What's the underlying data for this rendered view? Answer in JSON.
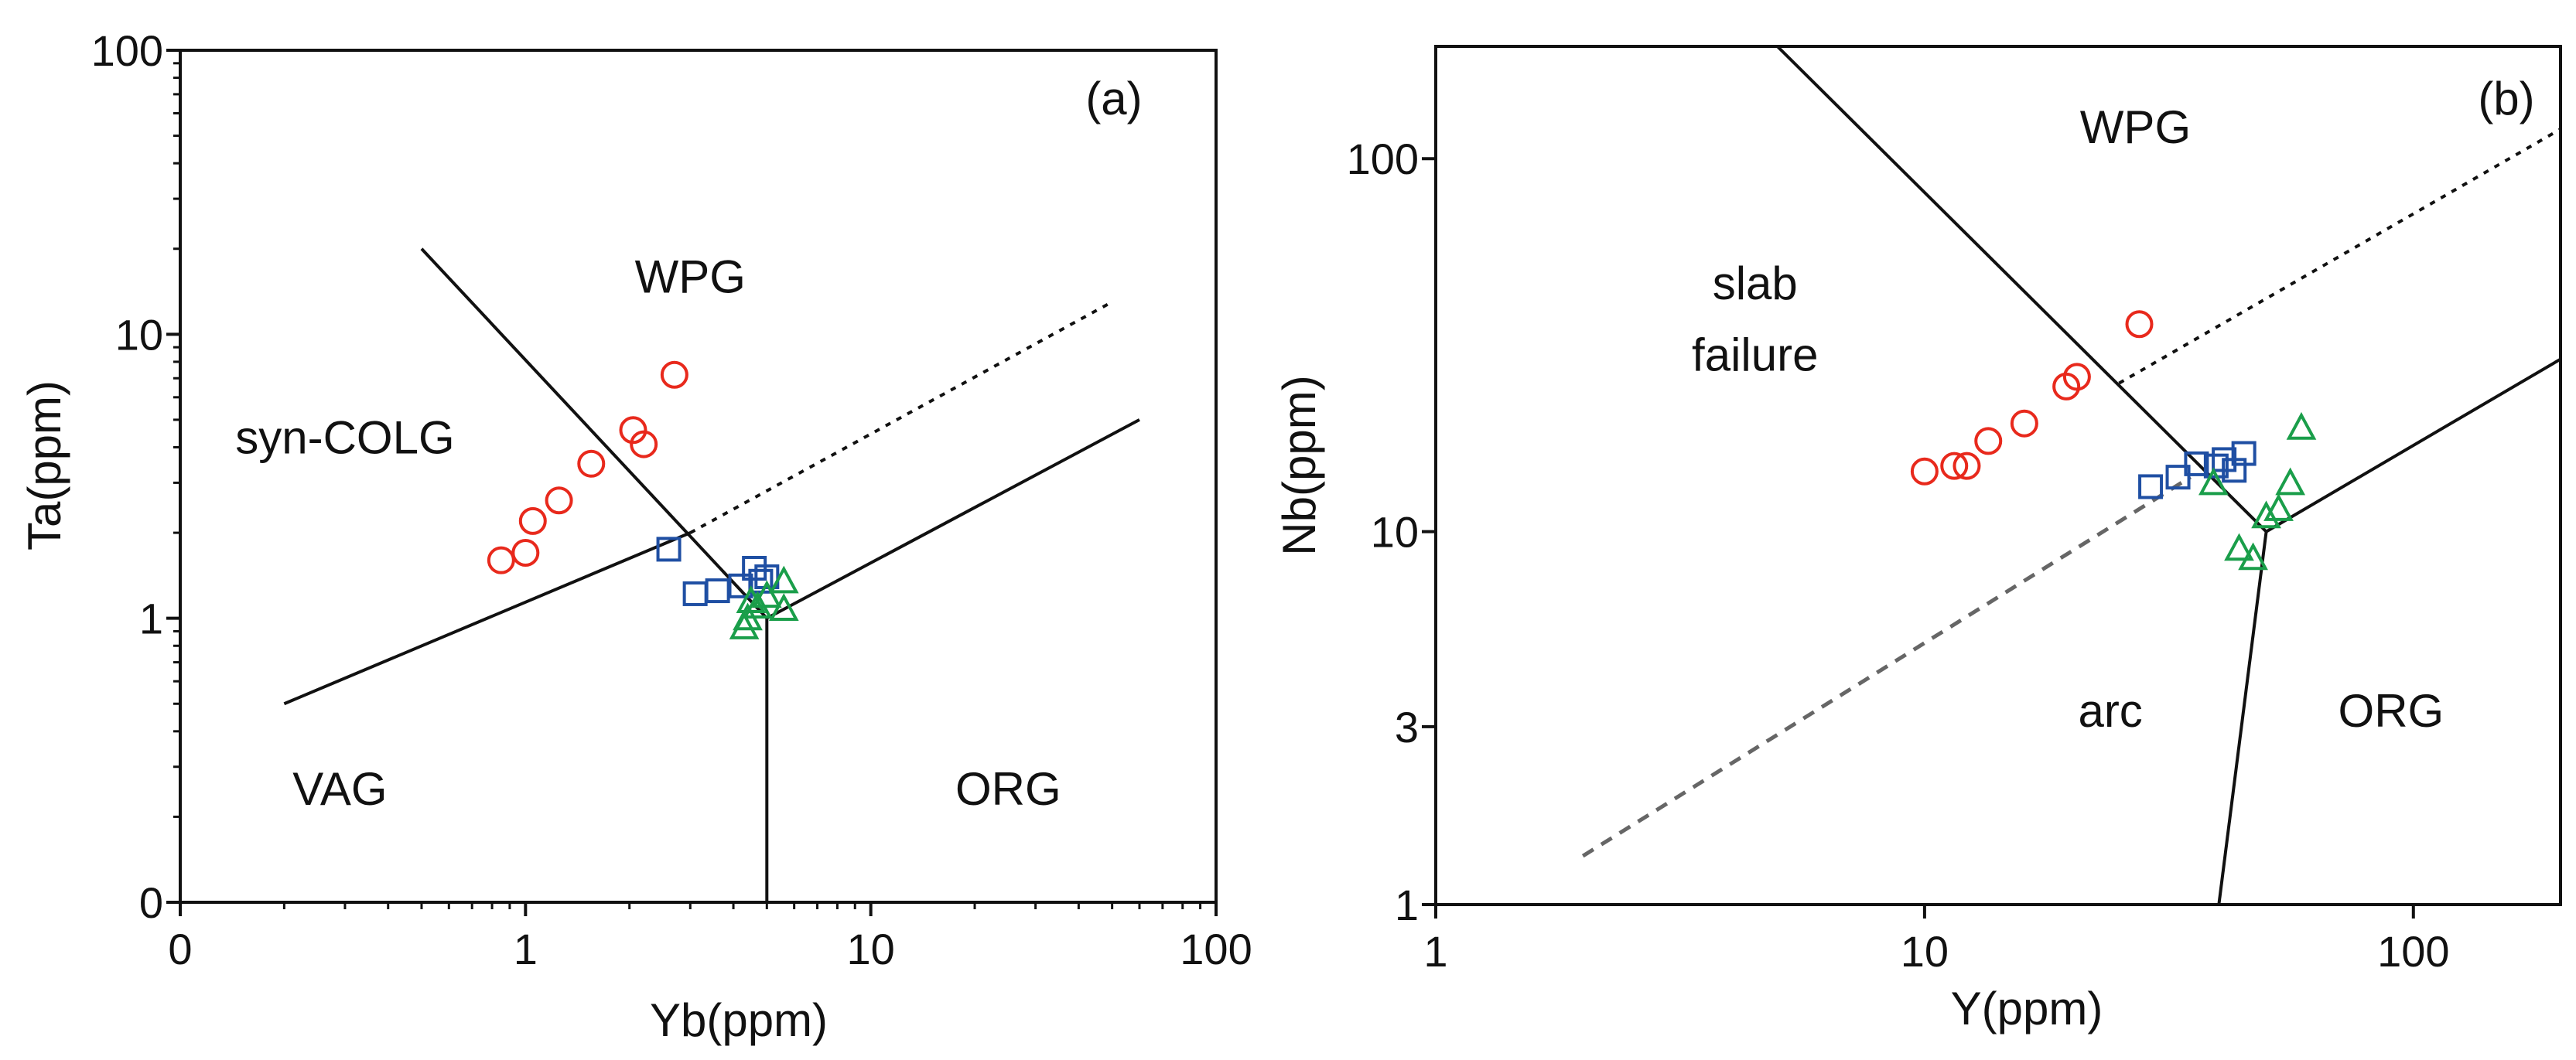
{
  "colors": {
    "axis": "#111111",
    "circle_series": "#e8291c",
    "square_series": "#1f4fa3",
    "triangle_series": "#1a9e4a",
    "dashed_gray": "#666666",
    "background": "#ffffff"
  },
  "chart_data": [
    {
      "type": "scatter",
      "panel_tag": "(a)",
      "xlabel": "Yb(ppm)",
      "ylabel": "Ta(ppm)",
      "xscale": "log",
      "yscale": "log",
      "xlim": [
        0.1,
        100
      ],
      "ylim": [
        0.1,
        100
      ],
      "x_ticks": [
        {
          "value": 0.1,
          "label": "0"
        },
        {
          "value": 1,
          "label": "1"
        },
        {
          "value": 10,
          "label": "10"
        },
        {
          "value": 100,
          "label": "100"
        }
      ],
      "y_ticks": [
        {
          "value": 0.1,
          "label": "0"
        },
        {
          "value": 1,
          "label": "1"
        },
        {
          "value": 10,
          "label": "10"
        },
        {
          "value": 100,
          "label": "100"
        }
      ],
      "field_labels": [
        {
          "text": "WPG",
          "x": 3.0,
          "y": 14
        },
        {
          "text": "syn-COLG",
          "x": 0.3,
          "y": 3.8
        },
        {
          "text": "VAG",
          "x": 0.29,
          "y": 0.22
        },
        {
          "text": "ORG",
          "x": 25,
          "y": 0.22
        }
      ],
      "boundaries": [
        {
          "style": "solid",
          "points": [
            [
              0.2,
              0.5
            ],
            [
              3.0,
              2.0
            ]
          ]
        },
        {
          "style": "solid",
          "points": [
            [
              0.5,
              20
            ],
            [
              5.0,
              1.0
            ]
          ]
        },
        {
          "style": "solid",
          "points": [
            [
              5.0,
              1.0
            ],
            [
              60,
              5.0
            ]
          ]
        },
        {
          "style": "solid",
          "points": [
            [
              5.0,
              1.0
            ],
            [
              5.0,
              0.1
            ]
          ]
        },
        {
          "style": "dotted",
          "points": [
            [
              3.0,
              2.0
            ],
            [
              50,
              13
            ]
          ]
        }
      ],
      "series": [
        {
          "name": "circles",
          "marker": "circle",
          "color": "#e8291c",
          "points": [
            [
              0.85,
              1.6
            ],
            [
              1.0,
              1.7
            ],
            [
              1.05,
              2.2
            ],
            [
              1.25,
              2.6
            ],
            [
              1.55,
              3.5
            ],
            [
              2.05,
              4.6
            ],
            [
              2.2,
              4.1
            ],
            [
              2.7,
              7.2
            ]
          ]
        },
        {
          "name": "squares",
          "marker": "square",
          "color": "#1f4fa3",
          "points": [
            [
              2.6,
              1.75
            ],
            [
              3.1,
              1.22
            ],
            [
              3.6,
              1.25
            ],
            [
              4.2,
              1.3
            ],
            [
              4.6,
              1.5
            ],
            [
              4.8,
              1.35
            ],
            [
              5.0,
              1.4
            ]
          ]
        },
        {
          "name": "triangles",
          "marker": "triangle",
          "color": "#1a9e4a",
          "points": [
            [
              4.3,
              0.93
            ],
            [
              4.4,
              1.0
            ],
            [
              4.5,
              1.15
            ],
            [
              4.7,
              1.1
            ],
            [
              5.0,
              1.2
            ],
            [
              5.6,
              1.35
            ],
            [
              5.6,
              1.08
            ]
          ]
        }
      ]
    },
    {
      "type": "scatter",
      "panel_tag": "(b)",
      "xlabel": "Y(ppm)",
      "ylabel": "Nb(ppm)",
      "xscale": "log",
      "yscale": "log",
      "xlim": [
        1,
        200
      ],
      "ylim": [
        1,
        200
      ],
      "x_ticks": [
        {
          "value": 1,
          "label": "1"
        },
        {
          "value": 10,
          "label": "10"
        },
        {
          "value": 100,
          "label": "100"
        }
      ],
      "y_ticks": [
        {
          "value": 1,
          "label": "1"
        },
        {
          "value": 3,
          "label": "3"
        },
        {
          "value": 10,
          "label": "10"
        },
        {
          "value": 100,
          "label": "100"
        }
      ],
      "field_labels": [
        {
          "text": "WPG",
          "x": 27,
          "y": 110
        },
        {
          "text": "slab",
          "x": 4.5,
          "y": 42
        },
        {
          "text": "failure",
          "x": 4.5,
          "y": 27
        },
        {
          "text": "arc",
          "x": 24,
          "y": 3.0
        },
        {
          "text": "ORG",
          "x": 90,
          "y": 3.0
        }
      ],
      "boundaries": [
        {
          "style": "solid",
          "points": [
            [
              5,
              200
            ],
            [
              50,
              10
            ]
          ]
        },
        {
          "style": "solid",
          "points": [
            [
              50,
              10
            ],
            [
              200,
              29
            ]
          ]
        },
        {
          "style": "solid",
          "points": [
            [
              50,
              10
            ],
            [
              40,
              1
            ]
          ]
        },
        {
          "style": "dotted",
          "points": [
            [
              25,
              25
            ],
            [
              200,
              120
            ]
          ]
        },
        {
          "style": "dashed",
          "points": [
            [
              2,
              1.35
            ],
            [
              35,
              14
            ]
          ]
        }
      ],
      "series": [
        {
          "name": "circles",
          "marker": "circle",
          "color": "#e8291c",
          "points": [
            [
              10,
              14.5
            ],
            [
              11.5,
              15
            ],
            [
              12.2,
              15
            ],
            [
              13.5,
              17.5
            ],
            [
              16,
              19.5
            ],
            [
              19.5,
              24.5
            ],
            [
              20.5,
              26
            ],
            [
              27.5,
              36
            ]
          ]
        },
        {
          "name": "squares",
          "marker": "square",
          "color": "#1f4fa3",
          "points": [
            [
              29,
              13.2
            ],
            [
              33,
              14
            ],
            [
              36,
              15.2
            ],
            [
              39.5,
              15
            ],
            [
              41,
              15.6
            ],
            [
              43,
              14.6
            ],
            [
              45,
              16.2
            ]
          ]
        },
        {
          "name": "triangles",
          "marker": "triangle",
          "color": "#1a9e4a",
          "points": [
            [
              39,
              13.5
            ],
            [
              44,
              9
            ],
            [
              47,
              8.5
            ],
            [
              50,
              11
            ],
            [
              53,
              11.5
            ],
            [
              56,
              13.5
            ],
            [
              59,
              19
            ]
          ]
        }
      ]
    }
  ]
}
